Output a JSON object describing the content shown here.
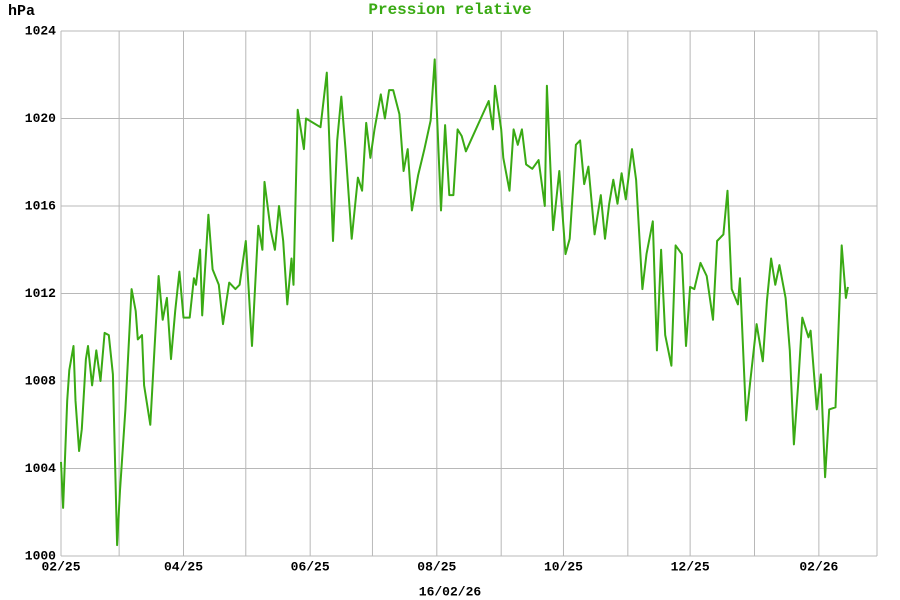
{
  "chart_data": {
    "type": "line",
    "title": "Pression relative",
    "ylabel": "hPa",
    "xlabel": "16/02/26",
    "color": "#3aaa14",
    "grid": true,
    "xlim": [
      0,
      393
    ],
    "ylim": [
      1000,
      1024
    ],
    "yticks": [
      1000,
      1004,
      1008,
      1012,
      1016,
      1020,
      1024
    ],
    "xticks": [
      {
        "value": 0,
        "label": "02/25"
      },
      {
        "value": 28,
        "label": null
      },
      {
        "value": 59,
        "label": "04/25"
      },
      {
        "value": 89,
        "label": null
      },
      {
        "value": 120,
        "label": "06/25"
      },
      {
        "value": 150,
        "label": null
      },
      {
        "value": 181,
        "label": "08/25"
      },
      {
        "value": 212,
        "label": null
      },
      {
        "value": 242,
        "label": "10/25"
      },
      {
        "value": 273,
        "label": null
      },
      {
        "value": 303,
        "label": "12/25"
      },
      {
        "value": 334,
        "label": null
      },
      {
        "value": 365,
        "label": "02/26"
      },
      {
        "value": 393,
        "label": null
      }
    ],
    "x": [
      0,
      1,
      3,
      4,
      6,
      7,
      8.7,
      10,
      12,
      13,
      15,
      17,
      19,
      21,
      23,
      25,
      27,
      28.4,
      31,
      34,
      36,
      37,
      39,
      40,
      43,
      45,
      47,
      49,
      51,
      53,
      55,
      57,
      59,
      62,
      64,
      65,
      67,
      68,
      71,
      73,
      76,
      78,
      81,
      84,
      86,
      89,
      92,
      95,
      97,
      98,
      101,
      103,
      105,
      107,
      109,
      111,
      112,
      114,
      117,
      118,
      125,
      128,
      131,
      133,
      135,
      137,
      140,
      143,
      145,
      147,
      149,
      151,
      154,
      156,
      158,
      160,
      163,
      165,
      167,
      169,
      172,
      175,
      178,
      180,
      181,
      183,
      185,
      187,
      189,
      191,
      193,
      195,
      206,
      208,
      209,
      212,
      213,
      216,
      218,
      220,
      222,
      224,
      227,
      230,
      233,
      234,
      237,
      240,
      243,
      245,
      248,
      250,
      252,
      254,
      257,
      260,
      262,
      264,
      266,
      268,
      270,
      272,
      275,
      277,
      280,
      282,
      285,
      287,
      289,
      291,
      294,
      296,
      299,
      301,
      303,
      305,
      308,
      311,
      314,
      316,
      319,
      321,
      323,
      326,
      327,
      330,
      332,
      335,
      338,
      340,
      342,
      344,
      346,
      349,
      351,
      353,
      355,
      357,
      360,
      361,
      364,
      366,
      368,
      370,
      373,
      376,
      378,
      379
    ],
    "values": [
      1004.3,
      1002.2,
      1007.1,
      1008.5,
      1009.6,
      1007.1,
      1004.8,
      1005.8,
      1009,
      1009.6,
      1007.8,
      1009.4,
      1008,
      1010.2,
      1010.1,
      1008.3,
      1000.5,
      1003,
      1006.7,
      1012.2,
      1011.2,
      1009.9,
      1010.1,
      1007.8,
      1006,
      1009.4,
      1012.8,
      1010.8,
      1011.8,
      1009,
      1011.2,
      1013,
      1010.9,
      1010.9,
      1012.7,
      1012.4,
      1014,
      1011,
      1015.6,
      1013.1,
      1012.4,
      1010.6,
      1012.5,
      1012.2,
      1012.4,
      1014.4,
      1009.6,
      1015.1,
      1014,
      1017.1,
      1014.9,
      1014,
      1016,
      1014.4,
      1011.5,
      1013.6,
      1012.4,
      1020.4,
      1018.6,
      1020,
      1019.6,
      1022.1,
      1014.4,
      1019,
      1021,
      1018.6,
      1014.5,
      1017.3,
      1016.7,
      1019.8,
      1018.2,
      1019.5,
      1021.1,
      1020,
      1021.3,
      1021.3,
      1020.2,
      1017.6,
      1018.6,
      1015.8,
      1017.4,
      1018.6,
      1019.9,
      1022.7,
      1020.4,
      1015.8,
      1019.7,
      1016.5,
      1016.5,
      1019.5,
      1019.2,
      1018.5,
      1020.8,
      1019.5,
      1021.5,
      1019.5,
      1018.2,
      1016.7,
      1019.5,
      1018.8,
      1019.5,
      1017.9,
      1017.7,
      1018.1,
      1016,
      1021.5,
      1014.9,
      1017.6,
      1013.8,
      1014.5,
      1018.8,
      1019,
      1017,
      1017.8,
      1014.7,
      1016.5,
      1014.5,
      1016.1,
      1017.2,
      1016.1,
      1017.5,
      1016.3,
      1018.6,
      1017.2,
      1012.2,
      1013.8,
      1015.3,
      1009.4,
      1014,
      1010.1,
      1008.7,
      1014.2,
      1013.8,
      1009.6,
      1012.3,
      1012.2,
      1013.4,
      1012.8,
      1010.8,
      1014.4,
      1014.7,
      1016.7,
      1012.2,
      1011.5,
      1012.7,
      1006.2,
      1008,
      1010.6,
      1008.9,
      1011.7,
      1013.6,
      1012.4,
      1013.3,
      1011.8,
      1009.4,
      1005.1,
      1007.8,
      1010.9,
      1010,
      1010.3,
      1006.7,
      1008.3,
      1003.6,
      1006.7,
      1006.8,
      1014.2,
      1011.8,
      1012.3
    ]
  }
}
